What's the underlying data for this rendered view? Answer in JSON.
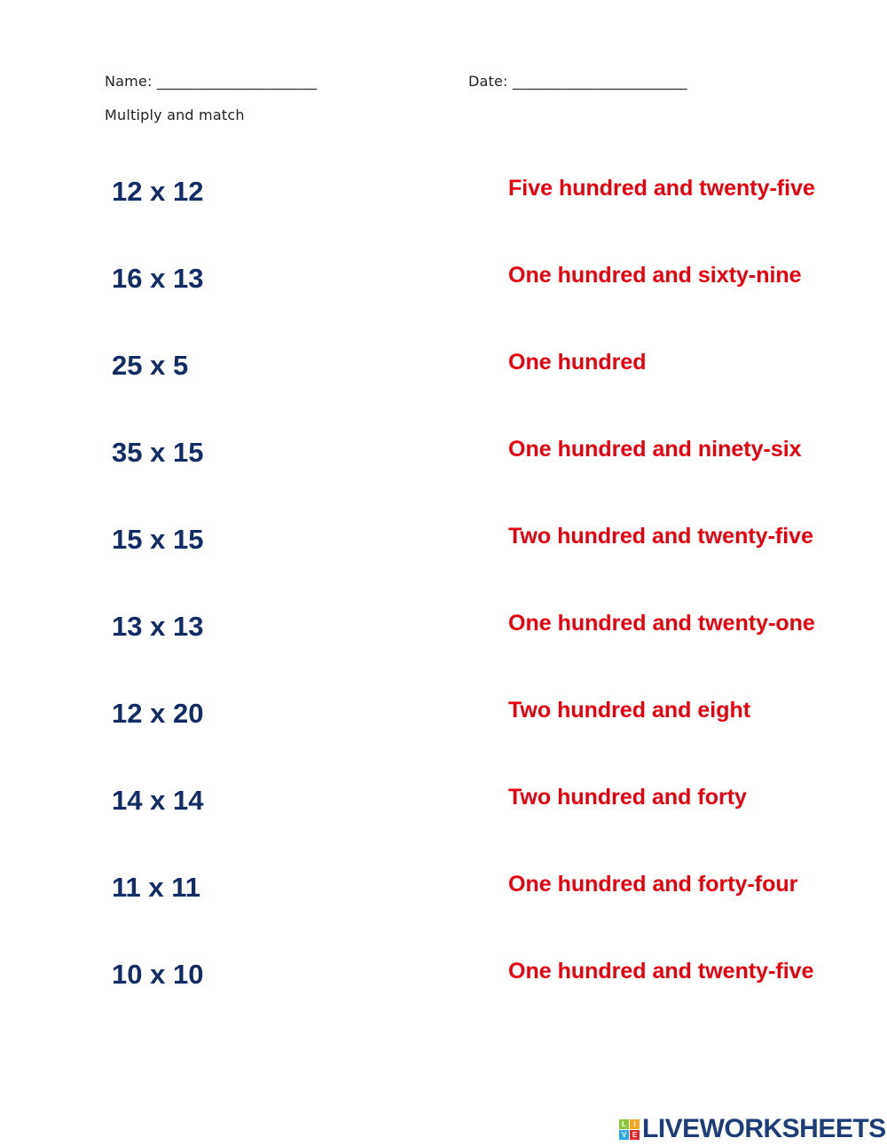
{
  "header": {
    "name_label": "Name: ______________________",
    "date_label": "Date: ________________________",
    "instructions": "Multiply and match"
  },
  "rows": [
    {
      "problem": "12 x 12",
      "answer": "Five hundred and twenty-five"
    },
    {
      "problem": "16 x 13",
      "answer": "One hundred and sixty-nine"
    },
    {
      "problem": "25 x 5",
      "answer": "One hundred"
    },
    {
      "problem": "35 x 15",
      "answer": "One hundred and ninety-six"
    },
    {
      "problem": "15 x 15",
      "answer": "Two hundred and twenty-five"
    },
    {
      "problem": "13 x 13",
      "answer": "One hundred and twenty-one"
    },
    {
      "problem": "12 x 20",
      "answer": "Two hundred and eight"
    },
    {
      "problem": "14 x 14",
      "answer": "Two hundred and forty"
    },
    {
      "problem": "11 x 11",
      "answer": "One hundred and forty-four"
    },
    {
      "problem": "10 x 10",
      "answer": "One hundred and twenty-five"
    }
  ],
  "logo": {
    "blocks": [
      "L",
      "I",
      "V",
      "E"
    ],
    "block_colors": [
      "#8cc63f",
      "#f7a823",
      "#29a9e0",
      "#e8262d"
    ],
    "text": "LIVEWORKSHEETS"
  },
  "colors": {
    "problem": "#142c66",
    "answer": "#e8000f"
  }
}
